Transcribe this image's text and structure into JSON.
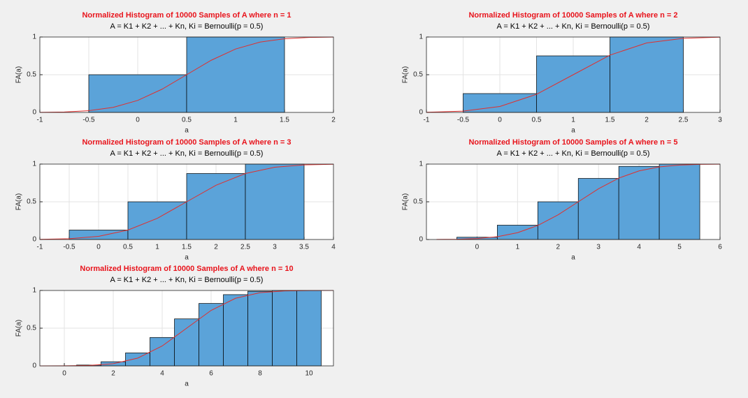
{
  "chart_data": [
    {
      "type": "histogram",
      "title": "Normalized Histogram of 10000 Samples of A where n = 1",
      "subtitle": "A = K1 + K2 + ... + Kn, Ki = Bernoulli(p = 0.5)",
      "xlabel": "a",
      "ylabel": "FA(a)",
      "color": "#5ba3d9",
      "grid": true,
      "bins": [
        -0.5,
        0.5,
        1.5
      ],
      "values": [
        0.5,
        1
      ],
      "curve": {
        "color": "#e0302e",
        "x": [
          -1,
          -0.75,
          -0.5,
          -0.25,
          0,
          0.25,
          0.5,
          0.75,
          1,
          1.25,
          1.5,
          1.75,
          2
        ],
        "values": [
          0.001,
          0.006,
          0.023,
          0.067,
          0.159,
          0.309,
          0.5,
          0.691,
          0.841,
          0.933,
          0.977,
          0.994,
          0.999
        ]
      },
      "xlim": [
        -1,
        2
      ],
      "xticks": [
        -1,
        -0.5,
        0,
        0.5,
        1,
        1.5,
        2
      ],
      "ylim": [
        0,
        1
      ],
      "yticks": [
        0,
        0.5,
        1
      ]
    },
    {
      "type": "histogram",
      "title": "Normalized Histogram of 10000 Samples of A where n = 2",
      "subtitle": "A = K1 + K2 + ... + Kn, Ki = Bernoulli(p = 0.5)",
      "xlabel": "a",
      "ylabel": "FA(a)",
      "color": "#5ba3d9",
      "grid": true,
      "bins": [
        -0.5,
        0.5,
        1.5,
        2.5
      ],
      "values": [
        0.25,
        0.75,
        1
      ],
      "curve": {
        "color": "#e0302e",
        "x": [
          -1,
          -0.5,
          0,
          0.5,
          1,
          1.5,
          2,
          2.5,
          3
        ],
        "values": [
          0.002,
          0.017,
          0.079,
          0.24,
          0.5,
          0.76,
          0.921,
          0.983,
          0.998
        ]
      },
      "xlim": [
        -1,
        3
      ],
      "xticks": [
        -1,
        -0.5,
        0,
        0.5,
        1,
        1.5,
        2,
        2.5,
        3
      ],
      "ylim": [
        0,
        1
      ],
      "yticks": [
        0,
        0.5,
        1
      ]
    },
    {
      "type": "histogram",
      "title": "Normalized Histogram of 10000 Samples of A where n = 3",
      "subtitle": "A = K1 + K2 + ... + Kn, Ki = Bernoulli(p = 0.5)",
      "xlabel": "a",
      "ylabel": "FA(a)",
      "color": "#5ba3d9",
      "grid": true,
      "bins": [
        -0.5,
        0.5,
        1.5,
        2.5,
        3.5
      ],
      "values": [
        0.125,
        0.5,
        0.875,
        1
      ],
      "curve": {
        "color": "#e0302e",
        "x": [
          -1,
          -0.5,
          0,
          0.5,
          1,
          1.5,
          2,
          2.5,
          3,
          3.5,
          4
        ],
        "values": [
          0.002,
          0.01,
          0.042,
          0.125,
          0.281,
          0.5,
          0.719,
          0.875,
          0.958,
          0.99,
          0.998
        ]
      },
      "xlim": [
        -1,
        4
      ],
      "xticks": [
        -1,
        -0.5,
        0,
        0.5,
        1,
        1.5,
        2,
        2.5,
        3,
        3.5,
        4
      ],
      "ylim": [
        0,
        1
      ],
      "yticks": [
        0,
        0.5,
        1
      ]
    },
    {
      "type": "histogram",
      "title": "Normalized Histogram of 10000 Samples of A where n = 5",
      "subtitle": "A = K1 + K2 + ... + Kn, Ki = Bernoulli(p = 0.5)",
      "xlabel": "a",
      "ylabel": "FA(a)",
      "color": "#5ba3d9",
      "grid": true,
      "bins": [
        -0.5,
        0.5,
        1.5,
        2.5,
        3.5,
        4.5,
        5.5
      ],
      "values": [
        0.03,
        0.19,
        0.5,
        0.81,
        0.97,
        1
      ],
      "curve": {
        "color": "#e0302e",
        "x": [
          -1,
          -0.5,
          0,
          0.5,
          1,
          1.5,
          2,
          2.5,
          3,
          3.5,
          4,
          4.5,
          5,
          5.5,
          6
        ],
        "values": [
          0.001,
          0.004,
          0.013,
          0.037,
          0.09,
          0.186,
          0.327,
          0.5,
          0.673,
          0.814,
          0.91,
          0.963,
          0.987,
          0.996,
          0.999
        ]
      },
      "xlim": [
        -1.25,
        6
      ],
      "xticks": [
        0,
        1,
        2,
        3,
        4,
        5,
        6
      ],
      "ylim": [
        0,
        1
      ],
      "yticks": [
        0,
        0.5,
        1
      ]
    },
    {
      "type": "histogram",
      "title": "Normalized Histogram of 10000 Samples of A where n = 10",
      "subtitle": "A = K1 + K2 + ... + Kn, Ki = Bernoulli(p = 0.5)",
      "xlabel": "a",
      "ylabel": "FA(a)",
      "color": "#5ba3d9",
      "grid": true,
      "bins": [
        -0.5,
        0.5,
        1.5,
        2.5,
        3.5,
        4.5,
        5.5,
        6.5,
        7.5,
        8.5,
        9.5,
        10.5
      ],
      "values": [
        0.001,
        0.011,
        0.055,
        0.172,
        0.377,
        0.623,
        0.828,
        0.945,
        0.989,
        0.999,
        1
      ],
      "curve": {
        "color": "#e0302e",
        "x": [
          -1,
          0,
          1,
          2,
          3,
          4,
          5,
          6,
          7,
          8,
          9,
          10,
          11
        ],
        "values": [
          0,
          0.001,
          0.006,
          0.029,
          0.103,
          0.264,
          0.5,
          0.736,
          0.897,
          0.971,
          0.994,
          0.999,
          1
        ]
      },
      "xlim": [
        -1,
        11
      ],
      "xticks": [
        0,
        2,
        4,
        6,
        8,
        10
      ],
      "ylim": [
        0,
        1
      ],
      "yticks": [
        0,
        0.5,
        1
      ]
    }
  ]
}
